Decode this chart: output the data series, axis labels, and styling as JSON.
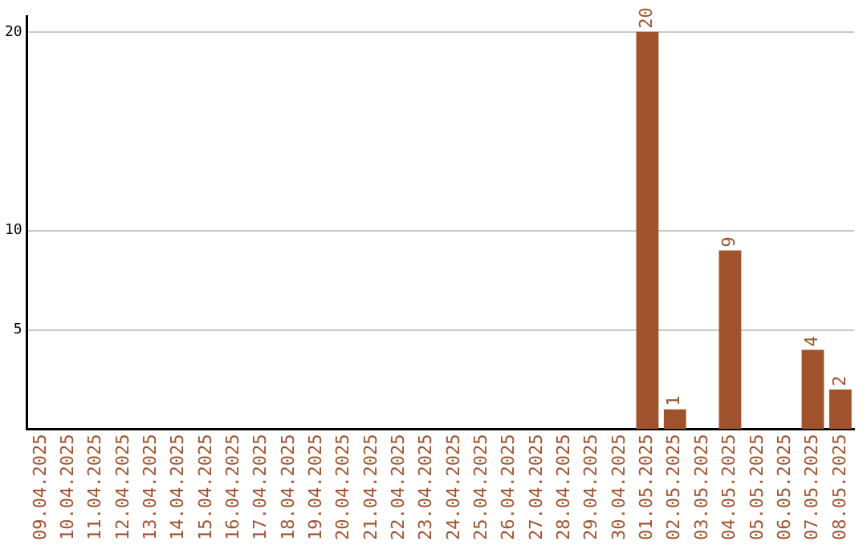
{
  "chart_data": {
    "type": "bar",
    "categories": [
      "09.04.2025",
      "10.04.2025",
      "11.04.2025",
      "12.04.2025",
      "13.04.2025",
      "14.04.2025",
      "15.04.2025",
      "16.04.2025",
      "17.04.2025",
      "18.04.2025",
      "19.04.2025",
      "20.04.2025",
      "21.04.2025",
      "22.04.2025",
      "23.04.2025",
      "24.04.2025",
      "25.04.2025",
      "26.04.2025",
      "27.04.2025",
      "28.04.2025",
      "29.04.2025",
      "30.04.2025",
      "01.05.2025",
      "02.05.2025",
      "03.05.2025",
      "04.05.2025",
      "05.05.2025",
      "06.05.2025",
      "07.05.2025",
      "08.05.2025"
    ],
    "values": [
      0,
      0,
      0,
      0,
      0,
      0,
      0,
      0,
      0,
      0,
      0,
      0,
      0,
      0,
      0,
      0,
      0,
      0,
      0,
      0,
      0,
      0,
      20,
      1,
      0,
      9,
      0,
      0,
      4,
      2
    ],
    "value_labels": [
      null,
      null,
      null,
      null,
      null,
      null,
      null,
      null,
      null,
      null,
      null,
      null,
      null,
      null,
      null,
      null,
      null,
      null,
      null,
      null,
      null,
      null,
      "20",
      "1",
      null,
      "9",
      null,
      null,
      "4",
      "2"
    ],
    "color": "#a0522d",
    "ylim": [
      0,
      20.8
    ],
    "yticks": [
      5,
      10,
      20
    ],
    "grid": "y",
    "legend": false
  }
}
